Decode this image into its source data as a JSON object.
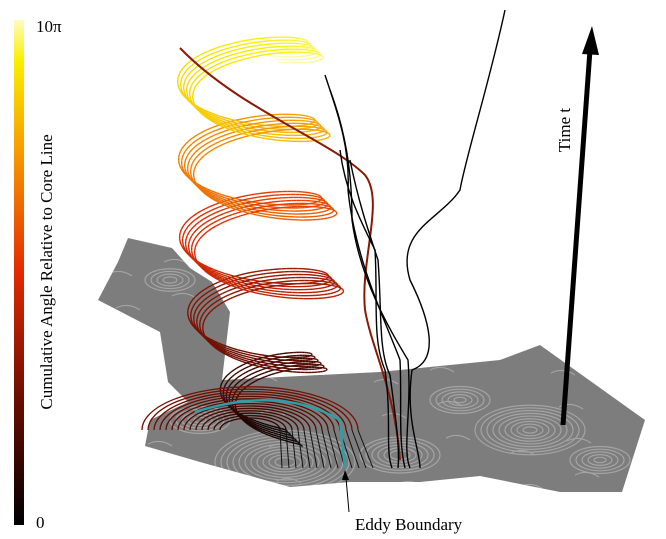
{
  "colorbar": {
    "title": "Cumulative Angle Relative to Core Line",
    "max_label": "10π",
    "min_label": "0"
  },
  "annotations": {
    "time_axis": "Time t",
    "eddy_boundary": "Eddy Boundary"
  }
}
